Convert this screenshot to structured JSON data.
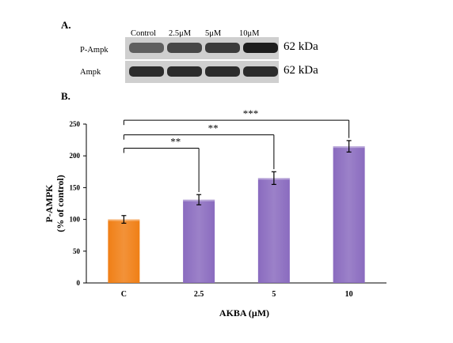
{
  "panel_a": {
    "label": "A.",
    "lanes": [
      "Control",
      "2.5μM",
      "5μM",
      "10μM"
    ],
    "rows": [
      {
        "name": "P-Ampk",
        "kda": "62 kDa",
        "intensity": [
          0.55,
          0.68,
          0.74,
          0.9
        ]
      },
      {
        "name": "Ampk",
        "kda": "62 kDa",
        "intensity": [
          0.82,
          0.82,
          0.82,
          0.82
        ]
      }
    ]
  },
  "panel_b": {
    "label": "B."
  },
  "chart_data": {
    "type": "bar",
    "categories": [
      "C",
      "2.5",
      "5",
      "10"
    ],
    "values": [
      100,
      131,
      165,
      215
    ],
    "errors": [
      6,
      8,
      10,
      9
    ],
    "colors": [
      "#f07f16",
      "#8a6bbf",
      "#8a6bbf",
      "#8a6bbf"
    ],
    "xlabel": "AKBA (μM)",
    "ylabel": "P-AMPK\n(% of control)",
    "ylim": [
      0,
      250
    ],
    "yticks": [
      0,
      50,
      100,
      150,
      200,
      250
    ],
    "grid": false,
    "legend": "none",
    "significance": [
      {
        "from": "C",
        "to": "2.5",
        "label": "**"
      },
      {
        "from": "C",
        "to": "5",
        "label": "**"
      },
      {
        "from": "C",
        "to": "10",
        "label": "***"
      }
    ]
  }
}
